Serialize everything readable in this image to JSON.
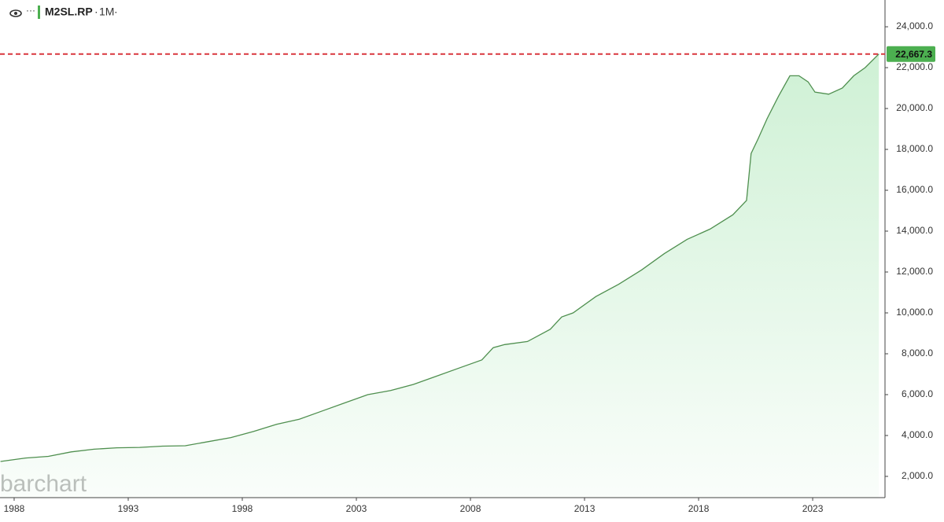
{
  "chart_data": {
    "type": "area",
    "symbol": "M2SL.RP",
    "interval": "1M",
    "watermark": "barchart",
    "color": "#4f8f4f",
    "fill_color": "#c9efd0",
    "grid": false,
    "price_line": {
      "value": 22667.3,
      "label": "22,667.3",
      "color": "#d9363e"
    },
    "x": [
      1987.4,
      1988.5,
      1989.5,
      1990.5,
      1991.5,
      1992.5,
      1993.5,
      1994.5,
      1995.5,
      1996.5,
      1997.5,
      1998.5,
      1999.5,
      2000.5,
      2001.5,
      2002.5,
      2003.5,
      2004.0,
      2004.5,
      2005.5,
      2006.5,
      2007.5,
      2008.5,
      2009.0,
      2009.5,
      2010.5,
      2011.5,
      2012.0,
      2012.5,
      2013.5,
      2014.5,
      2015.5,
      2016.5,
      2017.5,
      2018.5,
      2019.5,
      2020.1,
      2020.3,
      2020.6,
      2021.0,
      2021.5,
      2022.0,
      2022.4,
      2022.8,
      2023.1,
      2023.7,
      2024.3,
      2024.8,
      2025.3,
      2025.9
    ],
    "values": [
      2730,
      2900,
      2980,
      3200,
      3330,
      3400,
      3420,
      3480,
      3500,
      3700,
      3900,
      4200,
      4550,
      4800,
      5200,
      5600,
      6000,
      6100,
      6200,
      6500,
      6900,
      7300,
      7700,
      8300,
      8450,
      8600,
      9200,
      9800,
      10000,
      10800,
      11400,
      12100,
      12900,
      13600,
      14100,
      14800,
      15500,
      17800,
      18500,
      19500,
      20600,
      21600,
      21600,
      21300,
      20800,
      20700,
      21000,
      21600,
      22000,
      22667.3
    ],
    "xlim": [
      1987.38,
      2026.17
    ],
    "xticks": [
      1988,
      1993,
      1998,
      2003,
      2008,
      2013,
      2018,
      2023
    ],
    "ylim": [
      960,
      25310
    ],
    "yticks": [
      {
        "value": 2000,
        "label": "2,000.0"
      },
      {
        "value": 4000,
        "label": "4,000.0"
      },
      {
        "value": 6000,
        "label": "6,000.0"
      },
      {
        "value": 8000,
        "label": "8,000.0"
      },
      {
        "value": 10000,
        "label": "10,000.0"
      },
      {
        "value": 12000,
        "label": "12,000.0"
      },
      {
        "value": 14000,
        "label": "14,000.0"
      },
      {
        "value": 16000,
        "label": "16,000.0"
      },
      {
        "value": 18000,
        "label": "18,000.0"
      },
      {
        "value": 20000,
        "label": "20,000.0"
      },
      {
        "value": 22000,
        "label": "22,000.0"
      },
      {
        "value": 24000,
        "label": "24,000.0"
      }
    ]
  }
}
